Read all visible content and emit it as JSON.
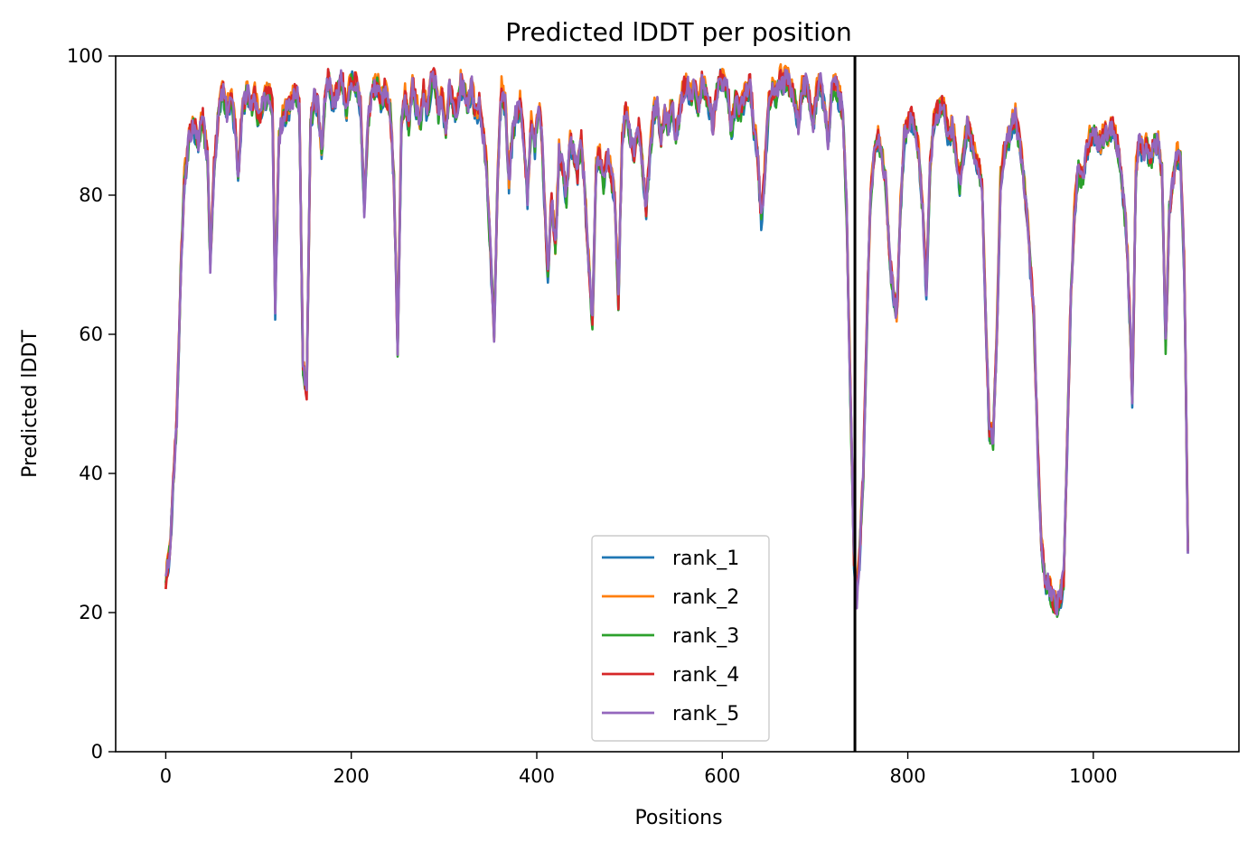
{
  "chart_data": {
    "type": "line",
    "title": "Predicted lDDT per position",
    "xlabel": "Positions",
    "ylabel": "Predicted lDDT",
    "xlim": [
      -54,
      1157
    ],
    "ylim": [
      0,
      100
    ],
    "xticks": [
      0,
      200,
      400,
      600,
      800,
      1000
    ],
    "yticks": [
      0,
      20,
      40,
      60,
      80,
      100
    ],
    "grid": false,
    "legend_position": "lower center",
    "vline_x": 743,
    "vline_color": "#000000",
    "base": [
      [
        0,
        24
      ],
      [
        5,
        30
      ],
      [
        8,
        38
      ],
      [
        12,
        48
      ],
      [
        16,
        68
      ],
      [
        20,
        82
      ],
      [
        25,
        88
      ],
      [
        30,
        90
      ],
      [
        35,
        88
      ],
      [
        40,
        91
      ],
      [
        45,
        85
      ],
      [
        48,
        70
      ],
      [
        52,
        84
      ],
      [
        58,
        93
      ],
      [
        62,
        95
      ],
      [
        66,
        92
      ],
      [
        70,
        94
      ],
      [
        75,
        90
      ],
      [
        78,
        82
      ],
      [
        82,
        92
      ],
      [
        88,
        95
      ],
      [
        92,
        93
      ],
      [
        96,
        94
      ],
      [
        100,
        91
      ],
      [
        105,
        93
      ],
      [
        110,
        95
      ],
      [
        115,
        93
      ],
      [
        118,
        64
      ],
      [
        122,
        88
      ],
      [
        126,
        91
      ],
      [
        130,
        92
      ],
      [
        135,
        93
      ],
      [
        140,
        95
      ],
      [
        144,
        93
      ],
      [
        148,
        55
      ],
      [
        152,
        52
      ],
      [
        156,
        90
      ],
      [
        160,
        94
      ],
      [
        164,
        93
      ],
      [
        168,
        86
      ],
      [
        172,
        95
      ],
      [
        176,
        97
      ],
      [
        180,
        93
      ],
      [
        185,
        95
      ],
      [
        190,
        97
      ],
      [
        195,
        92
      ],
      [
        200,
        97
      ],
      [
        205,
        96
      ],
      [
        210,
        93
      ],
      [
        214,
        78
      ],
      [
        218,
        90
      ],
      [
        222,
        95
      ],
      [
        228,
        96
      ],
      [
        232,
        94
      ],
      [
        236,
        95
      ],
      [
        242,
        92
      ],
      [
        246,
        82
      ],
      [
        250,
        58
      ],
      [
        254,
        90
      ],
      [
        258,
        94
      ],
      [
        262,
        90
      ],
      [
        266,
        96
      ],
      [
        270,
        93
      ],
      [
        274,
        90
      ],
      [
        278,
        95
      ],
      [
        282,
        92
      ],
      [
        286,
        96
      ],
      [
        290,
        97
      ],
      [
        294,
        92
      ],
      [
        298,
        94
      ],
      [
        302,
        89
      ],
      [
        306,
        96
      ],
      [
        310,
        93
      ],
      [
        314,
        92
      ],
      [
        318,
        96
      ],
      [
        322,
        95
      ],
      [
        326,
        93
      ],
      [
        330,
        96
      ],
      [
        334,
        91
      ],
      [
        338,
        93
      ],
      [
        342,
        89
      ],
      [
        346,
        84
      ],
      [
        350,
        72
      ],
      [
        354,
        60
      ],
      [
        358,
        84
      ],
      [
        362,
        95
      ],
      [
        366,
        93
      ],
      [
        370,
        82
      ],
      [
        374,
        89
      ],
      [
        378,
        92
      ],
      [
        382,
        93
      ],
      [
        386,
        88
      ],
      [
        390,
        80
      ],
      [
        394,
        90
      ],
      [
        398,
        87
      ],
      [
        402,
        92
      ],
      [
        405,
        90
      ],
      [
        408,
        80
      ],
      [
        412,
        68
      ],
      [
        416,
        80
      ],
      [
        420,
        72
      ],
      [
        424,
        86
      ],
      [
        428,
        84
      ],
      [
        432,
        80
      ],
      [
        436,
        88
      ],
      [
        440,
        86
      ],
      [
        444,
        83
      ],
      [
        448,
        88
      ],
      [
        452,
        80
      ],
      [
        456,
        70
      ],
      [
        460,
        62
      ],
      [
        464,
        84
      ],
      [
        468,
        86
      ],
      [
        472,
        82
      ],
      [
        476,
        86
      ],
      [
        480,
        83
      ],
      [
        484,
        80
      ],
      [
        488,
        65
      ],
      [
        492,
        88
      ],
      [
        496,
        92
      ],
      [
        500,
        89
      ],
      [
        505,
        86
      ],
      [
        510,
        90
      ],
      [
        514,
        84
      ],
      [
        518,
        78
      ],
      [
        522,
        86
      ],
      [
        526,
        92
      ],
      [
        530,
        93
      ],
      [
        534,
        88
      ],
      [
        538,
        92
      ],
      [
        542,
        90
      ],
      [
        546,
        93
      ],
      [
        550,
        88
      ],
      [
        554,
        92
      ],
      [
        558,
        95
      ],
      [
        562,
        96
      ],
      [
        566,
        94
      ],
      [
        570,
        96
      ],
      [
        574,
        92
      ],
      [
        578,
        96
      ],
      [
        582,
        95
      ],
      [
        586,
        93
      ],
      [
        590,
        90
      ],
      [
        594,
        95
      ],
      [
        598,
        97
      ],
      [
        602,
        96
      ],
      [
        606,
        95
      ],
      [
        610,
        89
      ],
      [
        614,
        94
      ],
      [
        618,
        92
      ],
      [
        622,
        93
      ],
      [
        626,
        95
      ],
      [
        630,
        96
      ],
      [
        634,
        90
      ],
      [
        638,
        86
      ],
      [
        642,
        76
      ],
      [
        646,
        84
      ],
      [
        650,
        93
      ],
      [
        654,
        95
      ],
      [
        658,
        94
      ],
      [
        662,
        97
      ],
      [
        666,
        96
      ],
      [
        670,
        97
      ],
      [
        674,
        95
      ],
      [
        678,
        94
      ],
      [
        682,
        90
      ],
      [
        686,
        95
      ],
      [
        690,
        96
      ],
      [
        694,
        94
      ],
      [
        698,
        90
      ],
      [
        702,
        95
      ],
      [
        706,
        96
      ],
      [
        710,
        93
      ],
      [
        714,
        88
      ],
      [
        718,
        95
      ],
      [
        722,
        96
      ],
      [
        726,
        94
      ],
      [
        730,
        92
      ],
      [
        734,
        78
      ],
      [
        738,
        52
      ],
      [
        742,
        28
      ],
      [
        745,
        22
      ],
      [
        748,
        28
      ],
      [
        752,
        40
      ],
      [
        756,
        62
      ],
      [
        760,
        80
      ],
      [
        764,
        86
      ],
      [
        768,
        88
      ],
      [
        772,
        86
      ],
      [
        776,
        82
      ],
      [
        780,
        72
      ],
      [
        784,
        66
      ],
      [
        788,
        62
      ],
      [
        792,
        78
      ],
      [
        796,
        88
      ],
      [
        800,
        90
      ],
      [
        804,
        91
      ],
      [
        808,
        90
      ],
      [
        812,
        86
      ],
      [
        816,
        78
      ],
      [
        820,
        66
      ],
      [
        824,
        84
      ],
      [
        828,
        90
      ],
      [
        832,
        92
      ],
      [
        836,
        93
      ],
      [
        840,
        92
      ],
      [
        844,
        88
      ],
      [
        848,
        90
      ],
      [
        852,
        86
      ],
      [
        856,
        82
      ],
      [
        860,
        86
      ],
      [
        864,
        90
      ],
      [
        868,
        88
      ],
      [
        872,
        86
      ],
      [
        876,
        84
      ],
      [
        880,
        82
      ],
      [
        884,
        62
      ],
      [
        888,
        46
      ],
      [
        892,
        45
      ],
      [
        896,
        60
      ],
      [
        900,
        82
      ],
      [
        904,
        86
      ],
      [
        908,
        88
      ],
      [
        912,
        90
      ],
      [
        916,
        91
      ],
      [
        920,
        88
      ],
      [
        924,
        84
      ],
      [
        928,
        78
      ],
      [
        932,
        70
      ],
      [
        936,
        62
      ],
      [
        940,
        44
      ],
      [
        944,
        30
      ],
      [
        948,
        25
      ],
      [
        952,
        24
      ],
      [
        956,
        22
      ],
      [
        960,
        21
      ],
      [
        964,
        22
      ],
      [
        968,
        25
      ],
      [
        972,
        45
      ],
      [
        976,
        66
      ],
      [
        980,
        78
      ],
      [
        984,
        84
      ],
      [
        988,
        82
      ],
      [
        992,
        86
      ],
      [
        996,
        88
      ],
      [
        1000,
        89
      ],
      [
        1004,
        88
      ],
      [
        1008,
        87
      ],
      [
        1012,
        89
      ],
      [
        1016,
        88
      ],
      [
        1020,
        90
      ],
      [
        1024,
        88
      ],
      [
        1028,
        86
      ],
      [
        1032,
        80
      ],
      [
        1036,
        74
      ],
      [
        1040,
        60
      ],
      [
        1042,
        50
      ],
      [
        1046,
        84
      ],
      [
        1050,
        88
      ],
      [
        1054,
        86
      ],
      [
        1058,
        87
      ],
      [
        1062,
        85
      ],
      [
        1066,
        88
      ],
      [
        1070,
        87
      ],
      [
        1074,
        84
      ],
      [
        1078,
        58
      ],
      [
        1082,
        78
      ],
      [
        1086,
        82
      ],
      [
        1090,
        86
      ],
      [
        1094,
        85
      ],
      [
        1098,
        70
      ],
      [
        1102,
        30
      ]
    ],
    "series": [
      {
        "name": "rank_1",
        "color": "#1f77b4",
        "seed": 11,
        "shift": -0.5
      },
      {
        "name": "rank_2",
        "color": "#ff7f0e",
        "seed": 23,
        "shift": 0.6
      },
      {
        "name": "rank_3",
        "color": "#2ca02c",
        "seed": 37,
        "shift": -0.3
      },
      {
        "name": "rank_4",
        "color": "#d62728",
        "seed": 51,
        "shift": 0.2
      },
      {
        "name": "rank_5",
        "color": "#9467bd",
        "seed": 67,
        "shift": 0.0
      }
    ]
  }
}
